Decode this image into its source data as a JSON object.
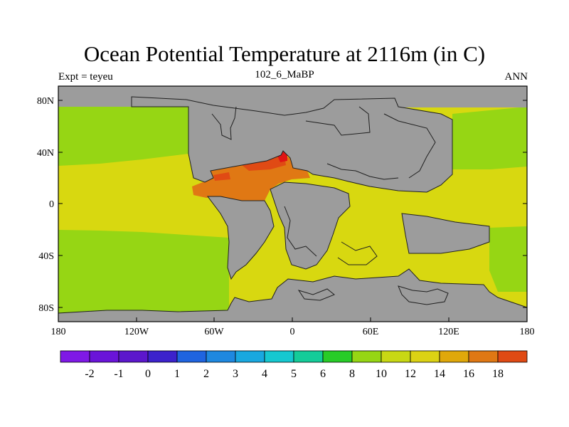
{
  "title": "Ocean Potential Temperature at 2116m (in C)",
  "subtitle_left": "Expt = teyeu",
  "subtitle_center": "102_6_MaBP",
  "subtitle_right": "ANN",
  "x_ticks": [
    "180",
    "120W",
    "60W",
    "0",
    "60E",
    "120E",
    "180"
  ],
  "y_ticks": [
    "80N",
    "40N",
    "0",
    "40S",
    "80S"
  ],
  "colorbar": {
    "colors": [
      "#7f19e6",
      "#6a14d9",
      "#5c17cc",
      "#3c22cc",
      "#1f64e0",
      "#1e88e0",
      "#19a8e0",
      "#16c8d0",
      "#14cc99",
      "#28cc28",
      "#96d614",
      "#c8d814",
      "#dcd214",
      "#e0a80a",
      "#e07814",
      "#e04a14",
      "#e01414"
    ],
    "labels": [
      "-2",
      "-1",
      "0",
      "1",
      "2",
      "3",
      "4",
      "5",
      "6",
      "8",
      "10",
      "12",
      "14",
      "16",
      "18"
    ]
  },
  "colors": {
    "land": "#9c9c9c",
    "temp_2": "#1f64e0",
    "temp_10": "#96d614",
    "temp_12": "#d8d810",
    "temp_14": "#e07814",
    "temp_16": "#e04a14",
    "temp_18": "#e01414"
  }
}
